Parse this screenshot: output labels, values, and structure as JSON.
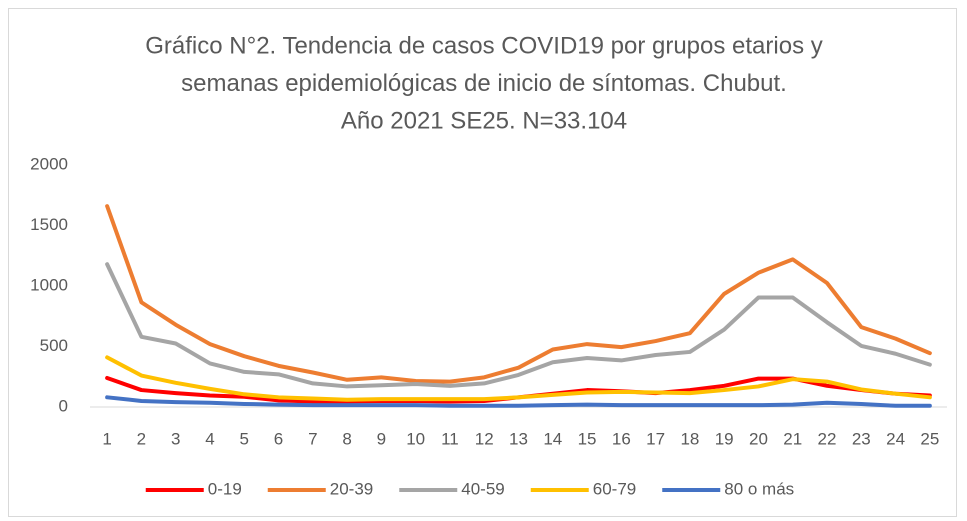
{
  "chart_data": {
    "type": "line",
    "title": [
      "Gráfico N°2. Tendencia de casos COVID19 por grupos etarios y",
      "semanas epidemiológicas de inicio de síntomas. Chubut.",
      "Año 2021 SE25. N=33.104"
    ],
    "categories": [
      "1",
      "2",
      "3",
      "4",
      "5",
      "6",
      "7",
      "8",
      "9",
      "10",
      "11",
      "12",
      "13",
      "14",
      "15",
      "16",
      "17",
      "18",
      "19",
      "20",
      "21",
      "22",
      "23",
      "24",
      "25"
    ],
    "series": [
      {
        "name": "0-19",
        "color": "#ff0000",
        "values": [
          240,
          140,
          115,
          95,
          85,
          55,
          45,
          45,
          50,
          50,
          45,
          50,
          80,
          110,
          140,
          130,
          115,
          140,
          175,
          235,
          235,
          175,
          140,
          110,
          95
        ]
      },
      {
        "name": "20-39",
        "color": "#ed7d31",
        "values": [
          1660,
          865,
          680,
          520,
          420,
          340,
          285,
          225,
          245,
          215,
          210,
          245,
          325,
          475,
          520,
          495,
          545,
          610,
          935,
          1110,
          1220,
          1025,
          660,
          565,
          445
        ]
      },
      {
        "name": "40-59",
        "color": "#a5a5a5",
        "values": [
          1180,
          580,
          525,
          360,
          290,
          270,
          195,
          170,
          180,
          190,
          175,
          195,
          265,
          370,
          405,
          385,
          430,
          455,
          640,
          905,
          905,
          700,
          505,
          440,
          350
        ]
      },
      {
        "name": "60-79",
        "color": "#ffc000",
        "values": [
          410,
          260,
          200,
          150,
          105,
          80,
          70,
          60,
          65,
          65,
          65,
          65,
          80,
          100,
          120,
          125,
          120,
          115,
          140,
          170,
          230,
          210,
          145,
          110,
          80
        ]
      },
      {
        "name": "80 o más",
        "color": "#4472c4",
        "values": [
          80,
          50,
          40,
          35,
          25,
          20,
          15,
          15,
          15,
          15,
          10,
          10,
          10,
          15,
          20,
          15,
          15,
          15,
          15,
          15,
          20,
          35,
          25,
          10,
          10
        ]
      }
    ],
    "ylim": [
      0,
      2000
    ],
    "yticks": [
      0,
      500,
      1000,
      1500,
      2000
    ],
    "grid": false,
    "legend": "bottom"
  }
}
